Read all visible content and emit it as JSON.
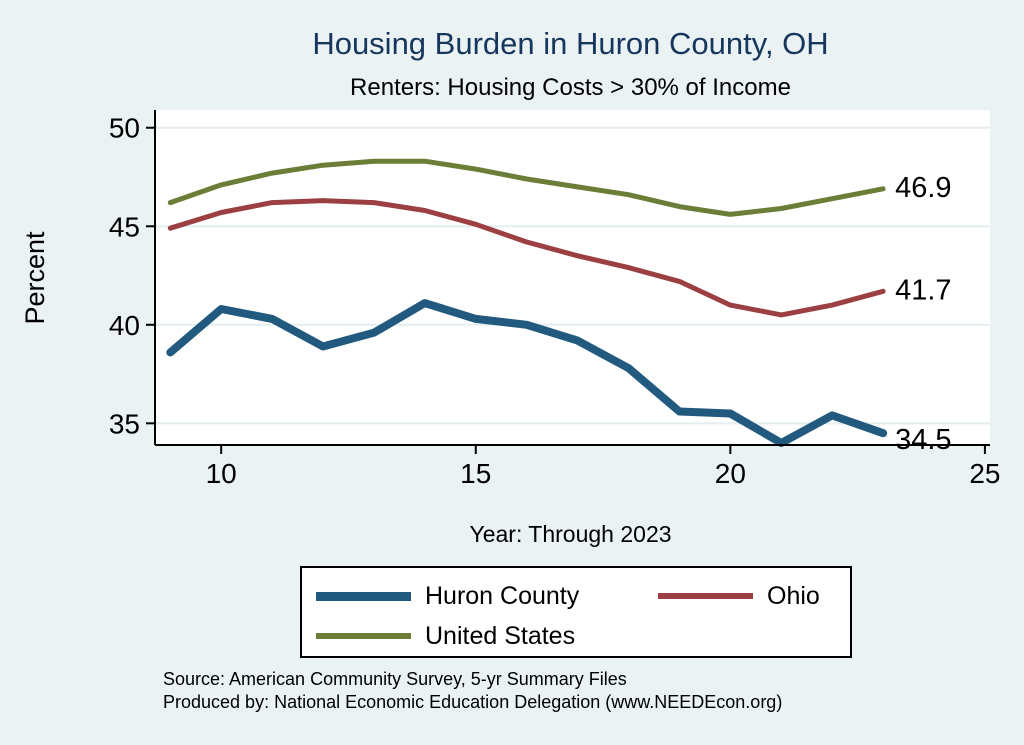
{
  "title": "Housing Burden in Huron County, OH",
  "subtitle": "Renters: Housing Costs > 30% of Income",
  "xlabel": "Year: Through 2023",
  "ylabel": "Percent",
  "source_line1": "Source: American Community Survey, 5-yr Summary Files",
  "source_line2": "Produced by: National Economic Education Delegation (www.NEEDEcon.org)",
  "colors": {
    "background": "#eaf2f3",
    "plot_background": "#ffffff",
    "title_text": "#17365d",
    "axis": "#000000",
    "gridline": "#e4eef0"
  },
  "chart_data": {
    "type": "line",
    "title": "Housing Burden in Huron County, OH",
    "subtitle": "Renters: Housing Costs > 30% of Income",
    "xlabel": "Year: Through 2023",
    "ylabel": "Percent",
    "x": [
      9,
      10,
      11,
      12,
      13,
      14,
      15,
      16,
      17,
      18,
      19,
      20,
      21,
      22,
      23
    ],
    "series": [
      {
        "id": "huron-county",
        "name": "Huron County",
        "color": "#21597f",
        "width": 8,
        "end_label": "34.5",
        "values": [
          38.6,
          40.8,
          40.3,
          38.9,
          39.6,
          41.1,
          40.3,
          40.0,
          39.2,
          37.8,
          35.6,
          35.5,
          34.0,
          35.4,
          34.5
        ]
      },
      {
        "id": "ohio",
        "name": "Ohio",
        "color": "#9c3f42",
        "width": 5,
        "end_label": "41.7",
        "values": [
          44.9,
          45.7,
          46.2,
          46.3,
          46.2,
          45.8,
          45.1,
          44.2,
          43.5,
          42.9,
          42.2,
          41.0,
          40.5,
          41.0,
          41.7
        ]
      },
      {
        "id": "united-states",
        "name": "United States",
        "color": "#6b7d36",
        "width": 5,
        "end_label": "46.9",
        "values": [
          46.2,
          47.1,
          47.7,
          48.1,
          48.3,
          48.3,
          47.9,
          47.4,
          47.0,
          46.6,
          46.0,
          45.6,
          45.9,
          46.4,
          46.9
        ]
      }
    ],
    "x_ticks": [
      10,
      15,
      20,
      25
    ],
    "y_ticks": [
      35,
      40,
      45,
      50
    ],
    "xlim": [
      8.7,
      25.1
    ],
    "ylim": [
      33.9,
      50.9
    ],
    "grid": true,
    "legend_position": "bottom"
  }
}
